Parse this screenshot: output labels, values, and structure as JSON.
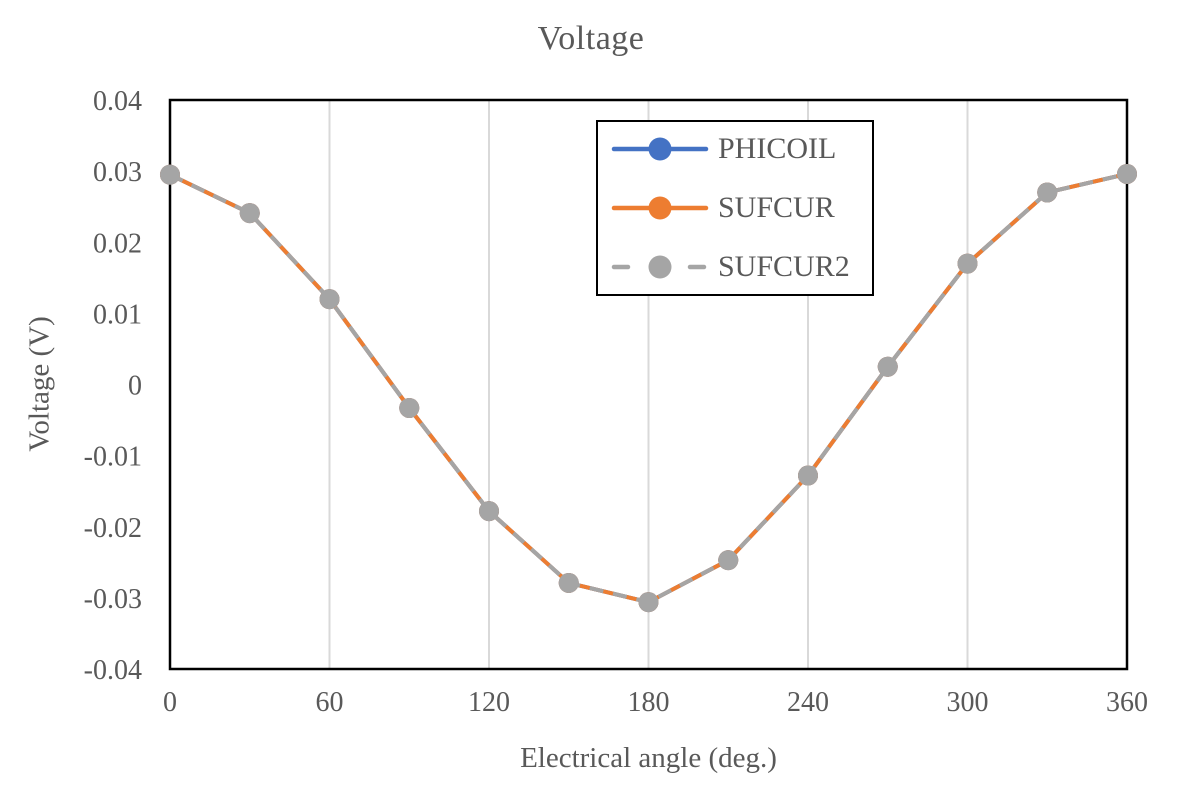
{
  "chart_data": {
    "type": "line",
    "title": "Voltage",
    "xlabel": "Electrical angle (deg.)",
    "ylabel": "Voltage (V)",
    "xlim": [
      0,
      360
    ],
    "ylim": [
      -0.04,
      0.04
    ],
    "grid": "vertical-only",
    "legend_position": "top-center-inside-boxed",
    "x_gridlines": [
      60,
      120,
      180,
      240,
      300
    ],
    "x_ticks": [
      0,
      60,
      120,
      180,
      240,
      300,
      360
    ],
    "y_ticks": [
      {
        "value": 0.04,
        "label": "0.04"
      },
      {
        "value": 0.03,
        "label": "0.03"
      },
      {
        "value": 0.02,
        "label": "0.02"
      },
      {
        "value": 0.01,
        "label": "0.01"
      },
      {
        "value": 0,
        "label": "0"
      },
      {
        "value": -0.01,
        "label": "-0.01"
      },
      {
        "value": -0.02,
        "label": "-0.02"
      },
      {
        "value": -0.03,
        "label": "-0.03"
      },
      {
        "value": -0.04,
        "label": "-0.04"
      }
    ],
    "x": [
      0,
      30,
      60,
      90,
      120,
      150,
      180,
      210,
      240,
      270,
      300,
      330,
      360
    ],
    "series": [
      {
        "name": "PHICOIL",
        "color": "#4472C4",
        "dash": false,
        "marker": "circle",
        "values": [
          0.0295,
          0.0241,
          0.012,
          -0.0033,
          -0.0178,
          -0.0279,
          -0.0306,
          -0.0247,
          -0.0128,
          0.0025,
          0.017,
          0.027,
          0.0296
        ]
      },
      {
        "name": "SUFCUR",
        "color": "#ED7D31",
        "dash": false,
        "marker": "circle",
        "values": [
          0.0295,
          0.0241,
          0.012,
          -0.0033,
          -0.0178,
          -0.0279,
          -0.0306,
          -0.0247,
          -0.0128,
          0.0025,
          0.017,
          0.027,
          0.0296
        ]
      },
      {
        "name": "SUFCUR2",
        "color": "#A5A5A5",
        "dash": true,
        "marker": "circle",
        "values": [
          0.0295,
          0.0241,
          0.012,
          -0.0033,
          -0.0178,
          -0.0279,
          -0.0306,
          -0.0247,
          -0.0128,
          0.0025,
          0.017,
          0.027,
          0.0296
        ]
      }
    ]
  },
  "colors": {
    "axis_text": "#595959",
    "gridline": "#D9D9D9",
    "plot_border": "#000000",
    "background": "#FFFFFF"
  }
}
